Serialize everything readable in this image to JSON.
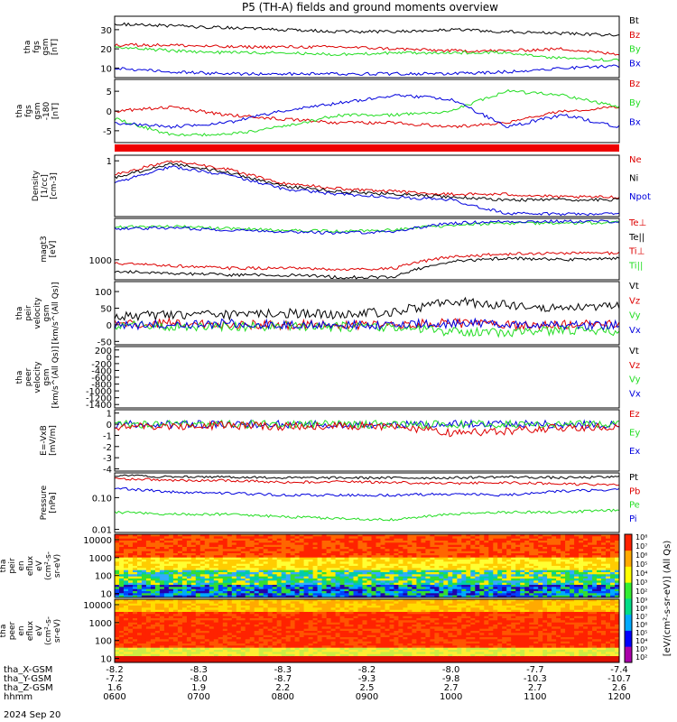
{
  "title": "P5 (TH-A) fields and ground moments overview",
  "colors": {
    "black": "#000000",
    "red": "#dd0000",
    "green": "#22dd22",
    "blue": "#0000dd"
  },
  "chart_data": [
    {
      "id": "fgs_btot",
      "type": "line",
      "ylabel": [
        "tha",
        "fgs",
        "gsm",
        "[nT]"
      ],
      "ylim": [
        5,
        37
      ],
      "ticks": [
        "30",
        "20",
        "10"
      ],
      "tickvals": [
        30,
        20,
        10
      ],
      "legend": [
        "Bt",
        "Bz",
        "By",
        "Bx"
      ],
      "legend_colors": [
        "black",
        "red",
        "green",
        "blue"
      ],
      "series": [
        {
          "color": "black",
          "values": [
            33,
            32,
            31,
            30,
            29,
            29,
            30,
            29,
            28,
            27
          ]
        },
        {
          "color": "red",
          "values": [
            22,
            22,
            21,
            21,
            21,
            20,
            19,
            19,
            20,
            17
          ]
        },
        {
          "color": "green",
          "values": [
            21,
            19,
            18,
            18,
            17,
            18,
            18,
            18,
            15,
            14
          ]
        },
        {
          "color": "blue",
          "values": [
            10,
            8,
            7,
            7,
            7,
            7,
            7,
            8,
            10,
            11
          ]
        }
      ]
    },
    {
      "id": "fgs_gsm",
      "type": "line",
      "ylabel": [
        "tha",
        "fgs",
        "gsm",
        "-180",
        "[nT]"
      ],
      "ylim": [
        -8,
        8
      ],
      "ticks": [
        "5",
        "0",
        "-5"
      ],
      "tickvals": [
        5,
        0,
        -5
      ],
      "legend": [
        "Bz",
        "By",
        "Bx"
      ],
      "legend_colors": [
        "red",
        "green",
        "blue"
      ],
      "series": [
        {
          "color": "red",
          "values": [
            0,
            1,
            -1,
            -2,
            -3,
            -3,
            -4,
            -3,
            0,
            1
          ]
        },
        {
          "color": "green",
          "values": [
            -2,
            -6,
            -6,
            -4,
            -1,
            -1,
            0,
            5,
            4,
            1
          ]
        },
        {
          "color": "blue",
          "values": [
            -3,
            -4,
            -3,
            0,
            2,
            4,
            3,
            -4,
            -1,
            -4
          ]
        }
      ]
    },
    {
      "id": "density",
      "type": "line",
      "ylabel": [
        "Density",
        "[1/cc]",
        "[cm-3]"
      ],
      "ylim": [
        0,
        1.1
      ],
      "ticks": [
        "1"
      ],
      "tickvals": [
        1
      ],
      "legend": [
        "Ne",
        "Ni",
        "Npot"
      ],
      "legend_colors": [
        "red",
        "black",
        "blue"
      ],
      "series": [
        {
          "color": "red",
          "values": [
            0.75,
            1.0,
            0.85,
            0.6,
            0.5,
            0.45,
            0.4,
            0.4,
            0.35,
            0.35
          ]
        },
        {
          "color": "black",
          "values": [
            0.7,
            0.95,
            0.8,
            0.55,
            0.45,
            0.4,
            0.35,
            0.3,
            0.3,
            0.3
          ]
        },
        {
          "color": "blue",
          "values": [
            0.6,
            0.9,
            0.75,
            0.5,
            0.4,
            0.35,
            0.3,
            0.05,
            0.05,
            0.05
          ]
        }
      ]
    },
    {
      "id": "temperature",
      "type": "line",
      "ylabel": [
        "magt3",
        "[eV]"
      ],
      "ylim": [
        300,
        12000
      ],
      "ticks": [
        "1000"
      ],
      "tickvals": [
        1000
      ],
      "legend": [
        "Te⊥",
        "Te||",
        "Ti⊥",
        "Ti||"
      ],
      "legend_colors": [
        "red",
        "black",
        "red",
        "green"
      ],
      "series": [
        {
          "color": "green",
          "values": [
            7000,
            7500,
            6500,
            6000,
            5500,
            6000,
            8000,
            9000,
            9000,
            9500
          ]
        },
        {
          "color": "blue",
          "values": [
            6500,
            6800,
            6000,
            5500,
            5000,
            5500,
            9000,
            10000,
            10000,
            10000
          ]
        },
        {
          "color": "red",
          "values": [
            800,
            700,
            600,
            600,
            550,
            600,
            1200,
            1400,
            1500,
            1500
          ]
        },
        {
          "color": "black",
          "values": [
            500,
            450,
            400,
            400,
            350,
            350,
            900,
            1100,
            1000,
            1100
          ]
        }
      ]
    },
    {
      "id": "peir_velocity",
      "type": "line",
      "ylabel": [
        "tha",
        "peir",
        "velocity",
        "gsm",
        "[km/s^(All Qs)]"
      ],
      "ylim": [
        -60,
        130
      ],
      "ticks": [
        "100",
        "50",
        "0",
        "-50"
      ],
      "tickvals": [
        100,
        50,
        0,
        -50
      ],
      "legend": [
        "Vt",
        "Vz",
        "Vy",
        "Vx"
      ],
      "legend_colors": [
        "black",
        "red",
        "green",
        "blue"
      ],
      "series": [
        {
          "color": "black",
          "values": [
            25,
            30,
            30,
            35,
            30,
            40,
            70,
            60,
            50,
            55
          ]
        },
        {
          "color": "red",
          "values": [
            5,
            5,
            0,
            0,
            0,
            0,
            5,
            0,
            0,
            0
          ]
        },
        {
          "color": "green",
          "values": [
            0,
            -5,
            -5,
            -5,
            -5,
            -10,
            -20,
            -25,
            -15,
            -20
          ]
        },
        {
          "color": "blue",
          "values": [
            0,
            0,
            5,
            0,
            0,
            0,
            5,
            5,
            0,
            0
          ]
        }
      ]
    },
    {
      "id": "peer_velocity",
      "type": "line",
      "ylabel": [
        "tha",
        "peer",
        "velocity",
        "gsm",
        "[km/s^(All Qs)]"
      ],
      "ylim": [
        -1500,
        300
      ],
      "ticks": [
        "200",
        "0",
        "-200",
        "-400",
        "-600",
        "-800",
        "-1000",
        "-1200",
        "-1400"
      ],
      "tickvals": [
        200,
        0,
        -200,
        -400,
        -600,
        -800,
        -1000,
        -1200,
        -1400
      ],
      "legend": [
        "Vt",
        "Vz",
        "Vy",
        "Vx"
      ],
      "legend_colors": [
        "black",
        "red",
        "green",
        "blue"
      ],
      "series": []
    },
    {
      "id": "efield",
      "type": "line",
      "ylabel": [
        "E=-VxB",
        "[mV/m]"
      ],
      "ylim": [
        -4.2,
        1.3
      ],
      "ticks": [
        "1",
        "0",
        "-1",
        "-2",
        "-3",
        "-4"
      ],
      "tickvals": [
        1,
        0,
        -1,
        -2,
        -3,
        -4
      ],
      "legend": [
        "Ez",
        "Ey",
        "Ex"
      ],
      "legend_colors": [
        "red",
        "green",
        "blue"
      ],
      "series": [
        {
          "color": "blue",
          "values": [
            0,
            0,
            0,
            0,
            0,
            0,
            0,
            0,
            0,
            0
          ]
        },
        {
          "color": "green",
          "values": [
            0,
            0,
            0,
            0,
            0,
            0,
            0,
            0,
            0,
            0
          ]
        },
        {
          "color": "red",
          "values": [
            -0.2,
            -0.2,
            -0.1,
            -0.2,
            -0.1,
            -0.2,
            -0.8,
            -0.6,
            -0.3,
            -0.3
          ]
        }
      ]
    },
    {
      "id": "pressure",
      "type": "line",
      "ylabel": [
        "Pressure",
        "[nPa]"
      ],
      "ylim": [
        0.008,
        0.6
      ],
      "ticks": [
        "0.10",
        "0.01"
      ],
      "tickvals": [
        0.1,
        0.01
      ],
      "legend": [
        "Pt",
        "Pb",
        "Pe",
        "Pi"
      ],
      "legend_colors": [
        "black",
        "red",
        "green",
        "blue"
      ],
      "series": [
        {
          "color": "black",
          "values": [
            0.5,
            0.45,
            0.45,
            0.42,
            0.42,
            0.42,
            0.42,
            0.45,
            0.42,
            0.45
          ]
        },
        {
          "color": "red",
          "values": [
            0.4,
            0.35,
            0.35,
            0.3,
            0.32,
            0.3,
            0.28,
            0.3,
            0.27,
            0.25
          ]
        },
        {
          "color": "blue",
          "values": [
            0.2,
            0.15,
            0.14,
            0.12,
            0.12,
            0.12,
            0.13,
            0.12,
            0.16,
            0.18
          ]
        },
        {
          "color": "green",
          "values": [
            0.035,
            0.03,
            0.03,
            0.025,
            0.022,
            0.02,
            0.03,
            0.035,
            0.035,
            0.04
          ]
        }
      ]
    },
    {
      "id": "peir_spec",
      "type": "heatmap",
      "ylabel": [
        "tha",
        "peir",
        "en",
        "eflux",
        "eV",
        "(cm²-s-",
        "sr-eV)"
      ],
      "ylim": [
        6,
        20000
      ],
      "ticks": [
        "10000",
        "1000",
        "100",
        "10"
      ],
      "tickvals": [
        10000,
        1000,
        100,
        10
      ]
    },
    {
      "id": "peer_spec",
      "type": "heatmap",
      "ylabel": [
        "tha",
        "peer",
        "en",
        "eflux",
        "eV",
        "(cm²-s-",
        "sr-eV)"
      ],
      "ylim": [
        6,
        20000
      ],
      "ticks": [
        "10000",
        "1000",
        "100",
        "10"
      ],
      "tickvals": [
        10000,
        1000,
        100,
        10
      ]
    }
  ],
  "colorbar": {
    "label": "[eV/(cm²-s-sr-eV)] (All Qs)",
    "top_ticks": [
      "10⁸",
      "10⁷",
      "10⁶",
      "10⁵",
      "10⁴",
      "10³",
      "10²"
    ],
    "bottom_ticks": [
      "10⁹",
      "10⁸",
      "10⁷",
      "10⁶",
      "10⁵",
      "10⁴",
      "10³",
      "10²"
    ]
  },
  "xaxis": {
    "rows": [
      {
        "label": "tha_X-GSM",
        "values": [
          "-8.2",
          "-8.3",
          "-8.3",
          "-8.2",
          "-8.0",
          "-7.7",
          "-7.4"
        ]
      },
      {
        "label": "tha_Y-GSM",
        "values": [
          "-7.2",
          "-8.0",
          "-8.7",
          "-9.3",
          "-9.8",
          "-10.3",
          "-10.7"
        ]
      },
      {
        "label": "tha_Z-GSM",
        "values": [
          "1.6",
          "1.9",
          "2.2",
          "2.5",
          "2.7",
          "2.7",
          "2.6"
        ]
      },
      {
        "label": "hhmm",
        "values": [
          "0600",
          "0700",
          "0800",
          "0900",
          "1000",
          "1100",
          "1200"
        ]
      }
    ],
    "date": "2024 Sep 20"
  }
}
